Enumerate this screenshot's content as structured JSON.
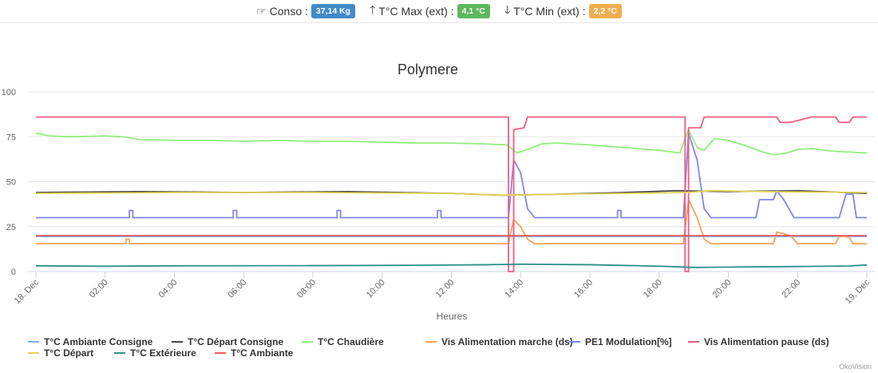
{
  "header": {
    "conso": {
      "label": "Conso :",
      "value": "37,14 Kg",
      "icon": "hand-point-right-icon",
      "color": "#428bca"
    },
    "tmax": {
      "label": "T°C Max (ext) :",
      "value": "4,1 °C",
      "icon": "arrow-up-icon",
      "color": "#5cb85c"
    },
    "tmin": {
      "label": "T°C Min (ext) :",
      "value": "2,2 °C",
      "icon": "arrow-down-icon",
      "color": "#f0ad4e"
    }
  },
  "credit": "OkoVision",
  "chart_data": {
    "type": "line",
    "title": "Polymere",
    "xlabel": "Heures",
    "ylabel": "",
    "xlim": [
      0,
      24
    ],
    "ylim": [
      0,
      100
    ],
    "yticks": [
      0,
      25,
      50,
      75,
      100
    ],
    "xticks": [
      {
        "v": 0,
        "label": "18. Dec"
      },
      {
        "v": 2,
        "label": "02:00"
      },
      {
        "v": 4,
        "label": "04:00"
      },
      {
        "v": 6,
        "label": "06:00"
      },
      {
        "v": 8,
        "label": "08:00"
      },
      {
        "v": 10,
        "label": "10:00"
      },
      {
        "v": 12,
        "label": "12:00"
      },
      {
        "v": 14,
        "label": "14:00"
      },
      {
        "v": 16,
        "label": "16:00"
      },
      {
        "v": 18,
        "label": "18:00"
      },
      {
        "v": 20,
        "label": "20:00"
      },
      {
        "v": 22,
        "label": "22:00"
      },
      {
        "v": 24,
        "label": "19. Dec"
      }
    ],
    "legend_position": "bottom",
    "series": [
      {
        "name": "T°C Ambiante Consigne",
        "color": "#7cb5ec",
        "points": [
          [
            0,
            19.5
          ],
          [
            24,
            19.5
          ]
        ]
      },
      {
        "name": "T°C Départ Consigne",
        "color": "#434348",
        "points": [
          [
            0,
            44
          ],
          [
            3,
            44.5
          ],
          [
            6,
            44
          ],
          [
            9,
            44.5
          ],
          [
            12,
            43.5
          ],
          [
            13.5,
            42.5
          ],
          [
            15,
            43
          ],
          [
            17,
            44
          ],
          [
            18.5,
            45
          ],
          [
            20,
            44.5
          ],
          [
            22,
            45
          ],
          [
            24,
            43.5
          ]
        ]
      },
      {
        "name": "T°C Chaudière",
        "color": "#90ed7d",
        "points": [
          [
            0,
            77
          ],
          [
            0.4,
            75.5
          ],
          [
            1,
            75
          ],
          [
            2,
            75.5
          ],
          [
            2.5,
            75
          ],
          [
            3,
            73.5
          ],
          [
            4,
            73
          ],
          [
            5,
            73
          ],
          [
            6,
            72.5
          ],
          [
            7,
            73
          ],
          [
            8,
            72.5
          ],
          [
            9,
            72.5
          ],
          [
            10,
            72
          ],
          [
            11,
            71.5
          ],
          [
            12,
            71.5
          ],
          [
            13,
            71
          ],
          [
            13.6,
            70.5
          ],
          [
            13.9,
            66
          ],
          [
            14.2,
            68
          ],
          [
            14.6,
            71
          ],
          [
            15,
            71.5
          ],
          [
            16,
            70.5
          ],
          [
            17,
            69
          ],
          [
            18,
            67.5
          ],
          [
            18.6,
            66
          ],
          [
            18.85,
            79
          ],
          [
            19.1,
            69
          ],
          [
            19.3,
            67.5
          ],
          [
            19.6,
            74
          ],
          [
            20,
            73
          ],
          [
            20.5,
            70
          ],
          [
            21,
            66.5
          ],
          [
            21.3,
            65
          ],
          [
            21.7,
            66
          ],
          [
            22,
            68
          ],
          [
            22.4,
            68.5
          ],
          [
            23,
            67
          ],
          [
            24,
            66
          ]
        ]
      },
      {
        "name": "Vis Alimentation marche (ds)",
        "color": "#f7a35c",
        "points": [
          [
            0,
            15.5
          ],
          [
            2.6,
            15.5
          ],
          [
            2.6,
            18
          ],
          [
            2.7,
            18
          ],
          [
            2.7,
            15.5
          ],
          [
            13.65,
            15.5
          ],
          [
            13.8,
            29
          ],
          [
            14,
            25
          ],
          [
            14.2,
            18
          ],
          [
            14.4,
            15.5
          ],
          [
            18.7,
            15.5
          ],
          [
            18.85,
            40
          ],
          [
            19.1,
            30
          ],
          [
            19.3,
            18
          ],
          [
            19.5,
            15.5
          ],
          [
            21.3,
            15.5
          ],
          [
            21.4,
            22
          ],
          [
            21.8,
            20
          ],
          [
            22,
            15.5
          ],
          [
            23.1,
            15.5
          ],
          [
            23.2,
            20
          ],
          [
            23.5,
            19
          ],
          [
            23.6,
            15.5
          ],
          [
            24,
            15.5
          ]
        ]
      },
      {
        "name": "PE1 Modulation[%]",
        "color": "#8085e9",
        "points": [
          [
            0,
            30
          ],
          [
            2.7,
            30
          ],
          [
            2.7,
            34
          ],
          [
            2.8,
            34
          ],
          [
            2.8,
            30
          ],
          [
            5.7,
            30
          ],
          [
            5.7,
            34
          ],
          [
            5.8,
            34
          ],
          [
            5.8,
            30
          ],
          [
            8.7,
            30
          ],
          [
            8.7,
            34
          ],
          [
            8.8,
            34
          ],
          [
            8.8,
            30
          ],
          [
            11.6,
            30
          ],
          [
            11.6,
            34
          ],
          [
            11.7,
            34
          ],
          [
            11.7,
            30
          ],
          [
            13.65,
            30
          ],
          [
            13.8,
            62
          ],
          [
            14,
            55
          ],
          [
            14.2,
            35
          ],
          [
            14.4,
            30
          ],
          [
            16.8,
            30
          ],
          [
            16.8,
            34
          ],
          [
            16.9,
            34
          ],
          [
            16.9,
            30
          ],
          [
            18.7,
            30
          ],
          [
            18.85,
            77
          ],
          [
            19.1,
            62
          ],
          [
            19.3,
            35
          ],
          [
            19.5,
            30
          ],
          [
            20.8,
            30
          ],
          [
            20.9,
            40
          ],
          [
            21.3,
            40
          ],
          [
            21.4,
            45
          ],
          [
            21.6,
            40
          ],
          [
            21.9,
            30
          ],
          [
            23.2,
            30
          ],
          [
            23.4,
            43
          ],
          [
            23.6,
            43
          ],
          [
            23.7,
            30
          ],
          [
            24,
            30
          ]
        ]
      },
      {
        "name": "Vis Alimentation pause (ds)",
        "color": "#f15c80",
        "points": [
          [
            0,
            86
          ],
          [
            13.65,
            86
          ],
          [
            13.65,
            0
          ],
          [
            13.8,
            0
          ],
          [
            13.8,
            79
          ],
          [
            14.1,
            80
          ],
          [
            14.2,
            86
          ],
          [
            18.75,
            86
          ],
          [
            18.75,
            0
          ],
          [
            18.85,
            0
          ],
          [
            18.85,
            80
          ],
          [
            19.2,
            80
          ],
          [
            19.3,
            86
          ],
          [
            21.4,
            86
          ],
          [
            21.5,
            83
          ],
          [
            21.8,
            83
          ],
          [
            22,
            84
          ],
          [
            22.4,
            86
          ],
          [
            23.1,
            86
          ],
          [
            23.2,
            83
          ],
          [
            23.5,
            83
          ],
          [
            23.6,
            86
          ],
          [
            24,
            86
          ]
        ]
      },
      {
        "name": "T°C Départ",
        "color": "#e4d354",
        "points": [
          [
            0,
            43.5
          ],
          [
            4,
            44
          ],
          [
            8,
            44
          ],
          [
            12,
            43.5
          ],
          [
            13.5,
            42.5
          ],
          [
            15,
            43
          ],
          [
            17,
            43.5
          ],
          [
            18.8,
            44
          ],
          [
            19.5,
            45
          ],
          [
            21,
            44.5
          ],
          [
            24,
            44
          ]
        ]
      },
      {
        "name": "T°C Extérieure",
        "color": "#2b908f",
        "points": [
          [
            0,
            3.2
          ],
          [
            2,
            3
          ],
          [
            4,
            3.2
          ],
          [
            8,
            3.3
          ],
          [
            11,
            3.5
          ],
          [
            13,
            3.8
          ],
          [
            14,
            4.1
          ],
          [
            16,
            3.8
          ],
          [
            18,
            3
          ],
          [
            19,
            2.3
          ],
          [
            20,
            2.5
          ],
          [
            22,
            2.8
          ],
          [
            23.5,
            3.1
          ],
          [
            24,
            3.7
          ]
        ]
      },
      {
        "name": "T°C Ambiante",
        "color": "#f45b5b",
        "points": [
          [
            0,
            20
          ],
          [
            24,
            20
          ]
        ]
      }
    ]
  }
}
